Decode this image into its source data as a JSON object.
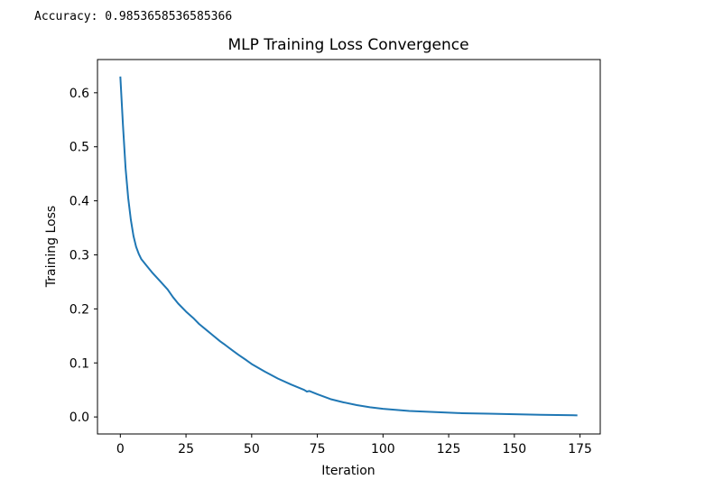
{
  "output": {
    "accuracy_line": "Accuracy: 0.9853658536585366"
  },
  "chart_data": {
    "type": "line",
    "title": "MLP Training Loss Convergence",
    "xlabel": "Iteration",
    "ylabel": "Training Loss",
    "xlim": [
      -8.7,
      182.7
    ],
    "ylim": [
      -0.0315,
      0.6615
    ],
    "xticks": [
      0,
      25,
      50,
      75,
      100,
      125,
      150,
      175
    ],
    "yticks": [
      0.0,
      0.1,
      0.2,
      0.3,
      0.4,
      0.5,
      0.6
    ],
    "ytick_labels": [
      "0.0",
      "0.1",
      "0.2",
      "0.3",
      "0.4",
      "0.5",
      "0.6"
    ],
    "grid": false,
    "legend": "none",
    "line_color": "#1f77b4",
    "series": [
      {
        "x": [
          0,
          1,
          2,
          3,
          4,
          5,
          6,
          7,
          8,
          10,
          12,
          15,
          18,
          20,
          22,
          25,
          28,
          30,
          33,
          35,
          38,
          40,
          43,
          45,
          48,
          50,
          55,
          60,
          65,
          70,
          71,
          72,
          75,
          80,
          85,
          90,
          95,
          100,
          110,
          120,
          130,
          140,
          150,
          160,
          174
        ],
        "y": [
          0.63,
          0.54,
          0.46,
          0.405,
          0.365,
          0.335,
          0.315,
          0.302,
          0.292,
          0.28,
          0.268,
          0.252,
          0.236,
          0.222,
          0.21,
          0.195,
          0.182,
          0.172,
          0.16,
          0.152,
          0.14,
          0.133,
          0.122,
          0.115,
          0.105,
          0.098,
          0.084,
          0.071,
          0.06,
          0.05,
          0.047,
          0.048,
          0.042,
          0.033,
          0.027,
          0.022,
          0.018,
          0.015,
          0.011,
          0.009,
          0.007,
          0.006,
          0.005,
          0.004,
          0.003
        ]
      }
    ]
  }
}
